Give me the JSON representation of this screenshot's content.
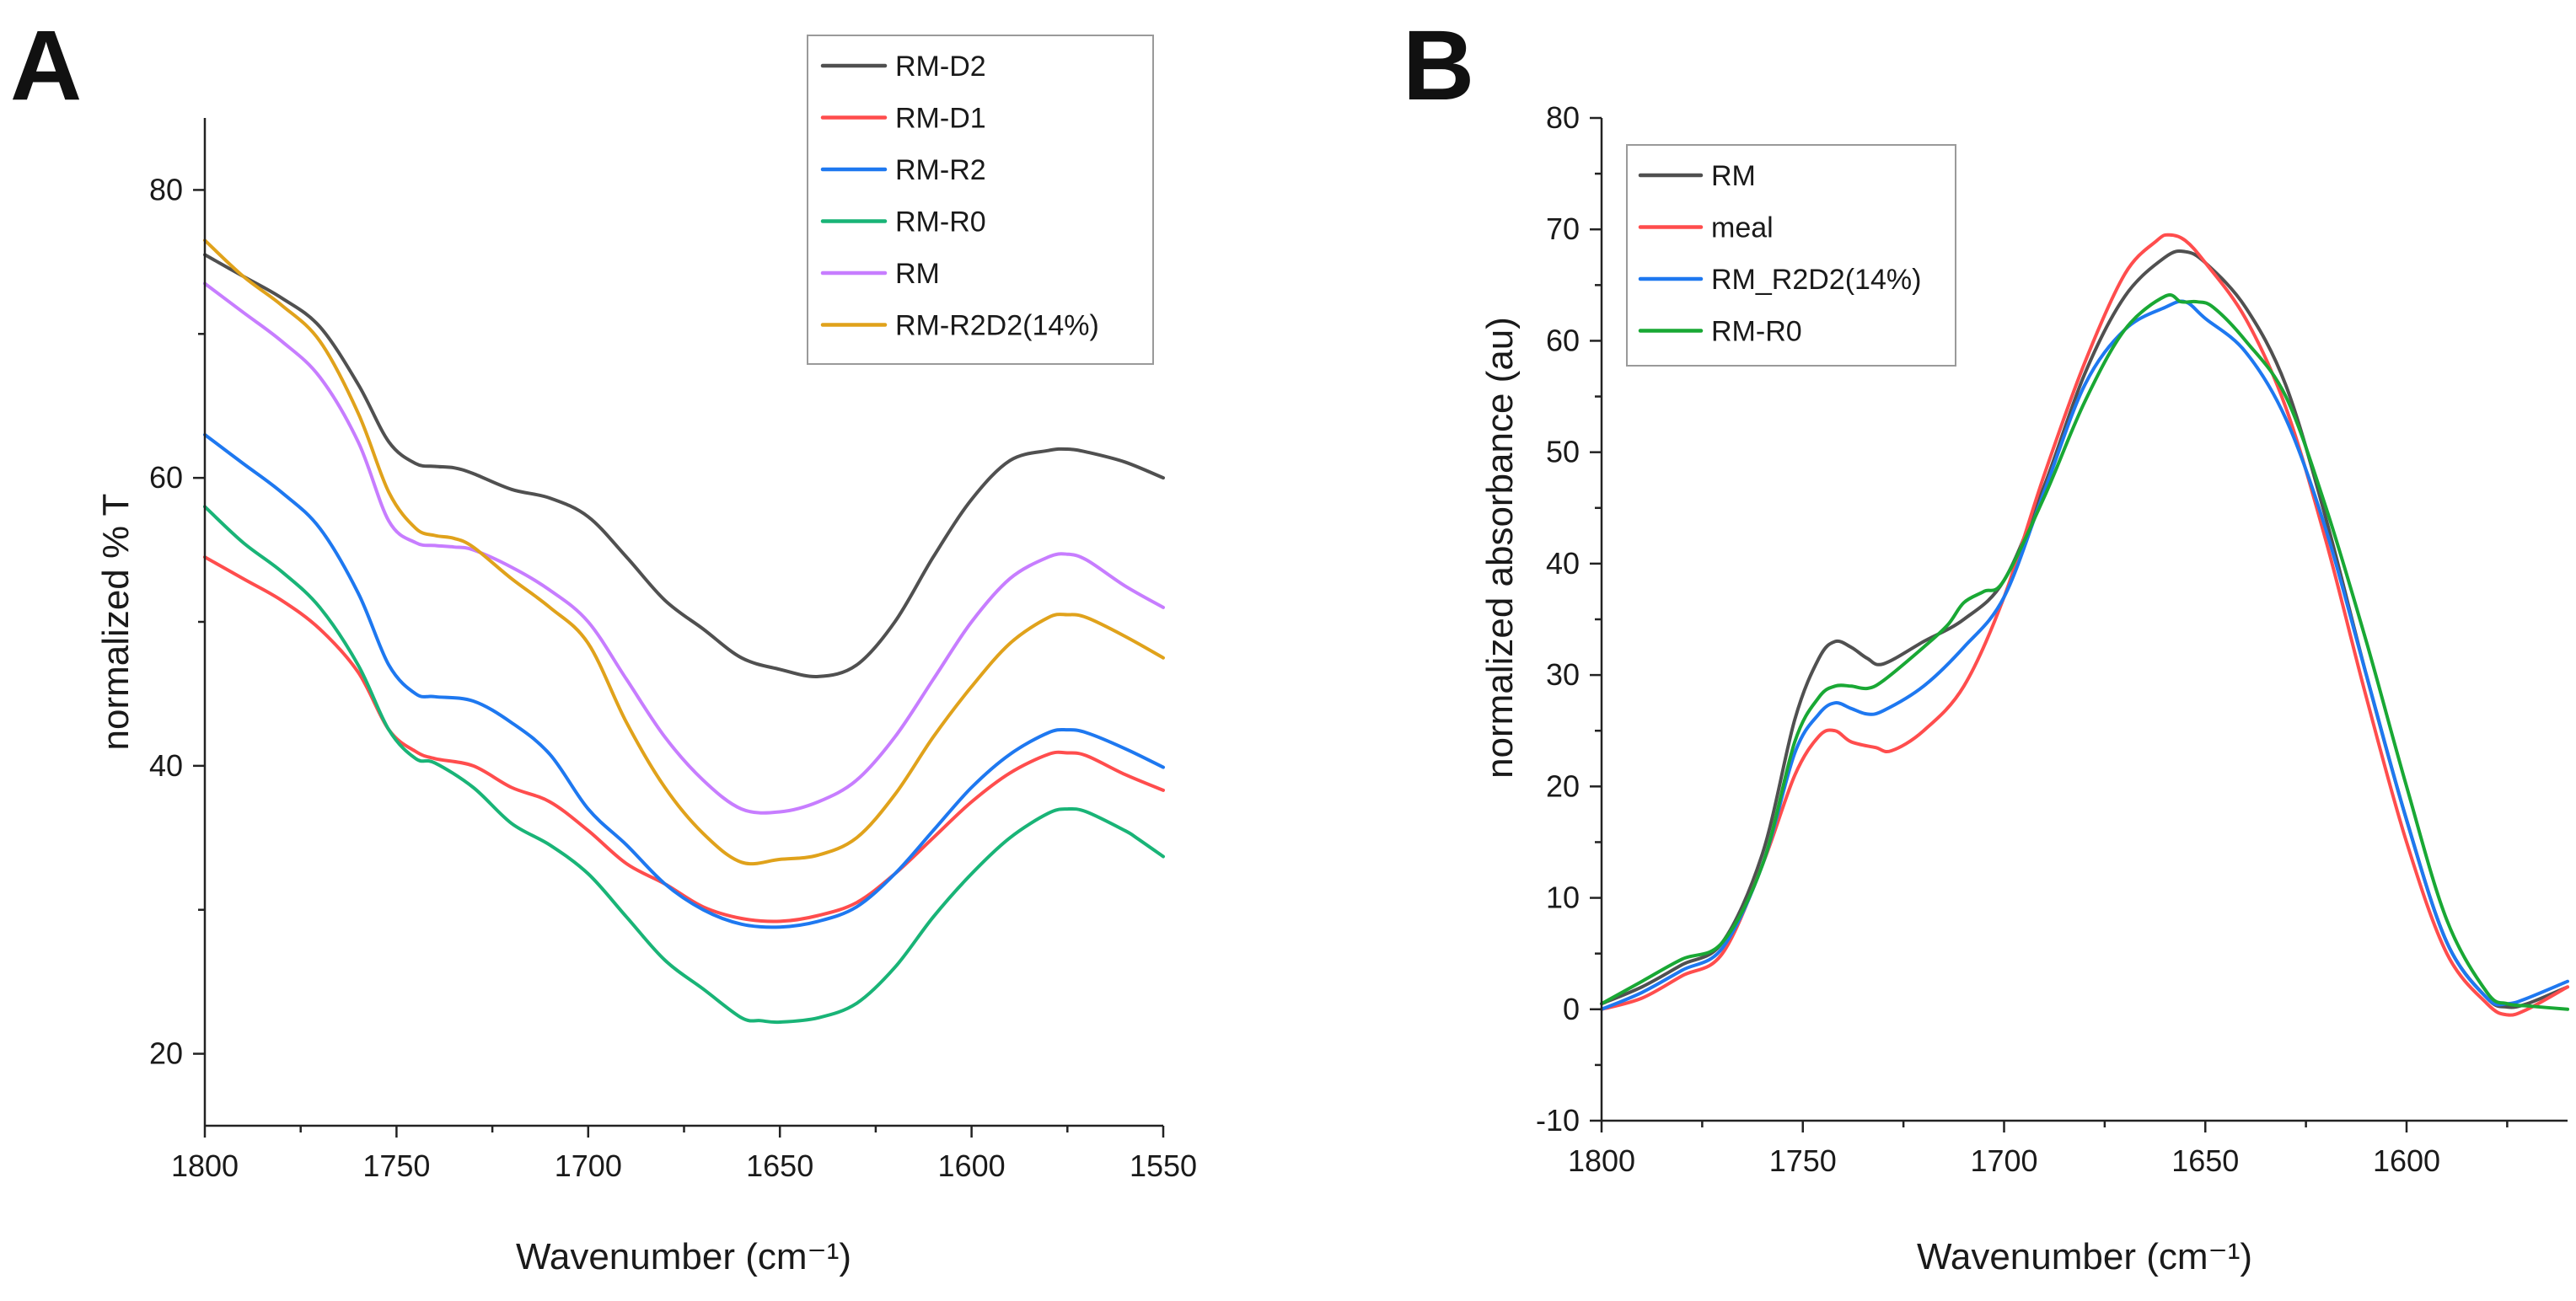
{
  "chart_data": [
    {
      "panel": "A",
      "type": "line",
      "title": "",
      "xlabel": "Wavenumber (cm⁻¹)",
      "ylabel": "normalized % T",
      "xlim": [
        1800,
        1550
      ],
      "ylim": [
        15,
        85
      ],
      "xticks": [
        1800,
        1750,
        1700,
        1650,
        1600,
        1550
      ],
      "yticks": [
        20,
        40,
        60,
        80
      ],
      "legend_position": "top-right",
      "series": [
        {
          "name": "RM-D2",
          "color": "#505050",
          "x": [
            1800,
            1790,
            1780,
            1770,
            1760,
            1752,
            1745,
            1740,
            1735,
            1730,
            1720,
            1710,
            1700,
            1690,
            1680,
            1670,
            1660,
            1650,
            1640,
            1630,
            1620,
            1610,
            1600,
            1590,
            1580,
            1575,
            1570,
            1560,
            1550
          ],
          "y": [
            75.5,
            74.0,
            72.5,
            70.5,
            66.5,
            62.5,
            61.0,
            60.8,
            60.7,
            60.3,
            59.2,
            58.6,
            57.3,
            54.5,
            51.5,
            49.5,
            47.5,
            46.7,
            46.2,
            47.0,
            50.0,
            54.5,
            58.5,
            61.2,
            61.9,
            62.0,
            61.8,
            61.1,
            60.0
          ]
        },
        {
          "name": "RM-D1",
          "color": "#ff4d4d",
          "x": [
            1800,
            1790,
            1780,
            1770,
            1760,
            1752,
            1745,
            1740,
            1730,
            1720,
            1710,
            1700,
            1690,
            1680,
            1670,
            1660,
            1650,
            1640,
            1630,
            1620,
            1610,
            1600,
            1590,
            1580,
            1575,
            1570,
            1560,
            1550
          ],
          "y": [
            54.5,
            53.0,
            51.5,
            49.5,
            46.5,
            42.5,
            41.0,
            40.5,
            40.0,
            38.5,
            37.5,
            35.5,
            33.2,
            31.8,
            30.2,
            29.4,
            29.2,
            29.6,
            30.5,
            32.5,
            35.0,
            37.5,
            39.5,
            40.8,
            40.9,
            40.7,
            39.4,
            38.3
          ]
        },
        {
          "name": "RM-R2",
          "color": "#1e78f0",
          "x": [
            1800,
            1790,
            1780,
            1770,
            1760,
            1752,
            1745,
            1740,
            1730,
            1720,
            1710,
            1700,
            1690,
            1680,
            1670,
            1660,
            1650,
            1640,
            1630,
            1620,
            1610,
            1600,
            1590,
            1580,
            1575,
            1570,
            1560,
            1550
          ],
          "y": [
            63.0,
            61.0,
            59.0,
            56.5,
            52.0,
            47.0,
            45.0,
            44.8,
            44.5,
            43.0,
            40.8,
            37.0,
            34.5,
            31.8,
            30.0,
            29.0,
            28.8,
            29.2,
            30.2,
            32.5,
            35.5,
            38.5,
            40.8,
            42.3,
            42.5,
            42.3,
            41.2,
            39.9
          ]
        },
        {
          "name": "RM-R0",
          "color": "#19b477",
          "x": [
            1800,
            1790,
            1780,
            1770,
            1760,
            1752,
            1745,
            1740,
            1730,
            1720,
            1710,
            1700,
            1690,
            1680,
            1670,
            1660,
            1655,
            1650,
            1640,
            1630,
            1620,
            1610,
            1600,
            1590,
            1580,
            1575,
            1570,
            1560,
            1557,
            1550
          ],
          "y": [
            58.0,
            55.5,
            53.5,
            51.0,
            47.0,
            42.5,
            40.5,
            40.2,
            38.5,
            36.0,
            34.5,
            32.5,
            29.5,
            26.5,
            24.5,
            22.5,
            22.3,
            22.2,
            22.5,
            23.5,
            26.0,
            29.5,
            32.5,
            35.0,
            36.7,
            37.0,
            36.8,
            35.5,
            35.0,
            33.7
          ]
        },
        {
          "name": "RM",
          "color": "#c77dff",
          "x": [
            1800,
            1790,
            1780,
            1770,
            1760,
            1752,
            1745,
            1740,
            1735,
            1730,
            1720,
            1710,
            1700,
            1690,
            1680,
            1670,
            1660,
            1650,
            1640,
            1630,
            1620,
            1610,
            1600,
            1590,
            1580,
            1575,
            1570,
            1560,
            1550
          ],
          "y": [
            73.5,
            71.5,
            69.5,
            67.0,
            62.5,
            57.0,
            55.5,
            55.3,
            55.2,
            55.0,
            53.8,
            52.2,
            50.0,
            46.0,
            42.0,
            39.0,
            37.0,
            36.8,
            37.5,
            39.0,
            42.0,
            46.0,
            50.0,
            53.0,
            54.5,
            54.7,
            54.3,
            52.5,
            51.0
          ]
        },
        {
          "name": "RM-R2D2(14%)",
          "color": "#e0a21b",
          "x": [
            1800,
            1790,
            1780,
            1770,
            1760,
            1752,
            1745,
            1740,
            1735,
            1730,
            1720,
            1710,
            1700,
            1690,
            1680,
            1670,
            1660,
            1650,
            1640,
            1630,
            1620,
            1610,
            1600,
            1590,
            1580,
            1575,
            1570,
            1560,
            1550
          ],
          "y": [
            76.5,
            74.0,
            72.0,
            69.5,
            64.5,
            59.0,
            56.5,
            56.0,
            55.8,
            55.2,
            53.0,
            51.0,
            48.5,
            43.0,
            38.5,
            35.3,
            33.3,
            33.5,
            33.8,
            35.0,
            38.0,
            42.0,
            45.5,
            48.5,
            50.3,
            50.5,
            50.3,
            49.0,
            47.5
          ]
        }
      ]
    },
    {
      "panel": "B",
      "type": "line",
      "title": "",
      "xlabel": "Wavenumber (cm⁻¹)",
      "ylabel": "normalized absorbance (au)",
      "xlim": [
        1800,
        1560
      ],
      "ylim": [
        -10,
        80
      ],
      "xticks": [
        1800,
        1750,
        1700,
        1650,
        1600
      ],
      "yticks": [
        -10,
        0,
        10,
        20,
        30,
        40,
        50,
        60,
        70,
        80
      ],
      "legend_position": "top-left",
      "series": [
        {
          "name": "RM",
          "color": "#505050",
          "x": [
            1800,
            1790,
            1780,
            1770,
            1760,
            1752,
            1746,
            1742,
            1738,
            1734,
            1730,
            1720,
            1710,
            1700,
            1690,
            1680,
            1670,
            1660,
            1655,
            1650,
            1640,
            1630,
            1620,
            1610,
            1600,
            1590,
            1580,
            1575,
            1570,
            1560
          ],
          "y": [
            0.5,
            2.0,
            4.0,
            6.0,
            14.0,
            26.0,
            31.5,
            33.0,
            32.5,
            31.5,
            31.0,
            33.0,
            35.0,
            38.5,
            47.0,
            57.0,
            64.0,
            67.5,
            68.0,
            67.0,
            63.0,
            56.0,
            44.0,
            30.0,
            17.0,
            6.0,
            1.0,
            0.2,
            0.5,
            2.0
          ]
        },
        {
          "name": "meal",
          "color": "#ff4d4d",
          "x": [
            1800,
            1790,
            1780,
            1770,
            1760,
            1752,
            1746,
            1742,
            1738,
            1732,
            1728,
            1720,
            1710,
            1700,
            1690,
            1680,
            1670,
            1662,
            1659,
            1655,
            1650,
            1640,
            1630,
            1620,
            1610,
            1600,
            1590,
            1580,
            1575,
            1570,
            1560
          ],
          "y": [
            0.0,
            1.0,
            3.0,
            5.0,
            13.0,
            21.0,
            24.5,
            25.0,
            24.0,
            23.5,
            23.2,
            25.0,
            29.0,
            37.0,
            48.0,
            58.0,
            66.0,
            69.0,
            69.5,
            69.0,
            67.0,
            62.0,
            54.0,
            42.0,
            28.0,
            15.0,
            5.0,
            0.5,
            -0.5,
            0.0,
            2.0
          ]
        },
        {
          "name": "RM_R2D2(14%)",
          "color": "#1e78f0",
          "x": [
            1800,
            1790,
            1780,
            1770,
            1760,
            1752,
            1746,
            1742,
            1738,
            1734,
            1730,
            1720,
            1710,
            1700,
            1690,
            1680,
            1670,
            1660,
            1655,
            1650,
            1640,
            1630,
            1620,
            1610,
            1600,
            1590,
            1580,
            1575,
            1570,
            1560
          ],
          "y": [
            0.0,
            1.5,
            3.5,
            5.5,
            13.0,
            23.0,
            26.5,
            27.5,
            27.0,
            26.5,
            26.8,
            29.0,
            32.5,
            37.0,
            46.5,
            56.0,
            61.0,
            63.0,
            63.5,
            62.0,
            59.0,
            53.0,
            43.0,
            30.0,
            17.0,
            6.0,
            1.0,
            0.5,
            1.0,
            2.5
          ]
        },
        {
          "name": "RM-R0",
          "color": "#19a834",
          "x": [
            1800,
            1790,
            1780,
            1770,
            1760,
            1752,
            1746,
            1742,
            1738,
            1734,
            1730,
            1720,
            1714,
            1710,
            1705,
            1700,
            1690,
            1680,
            1670,
            1660,
            1656,
            1652,
            1648,
            1640,
            1630,
            1620,
            1610,
            1600,
            1590,
            1580,
            1575,
            1570,
            1560
          ],
          "y": [
            0.5,
            2.5,
            4.5,
            6.0,
            13.0,
            24.0,
            28.0,
            29.0,
            29.0,
            28.8,
            29.5,
            32.5,
            34.5,
            36.5,
            37.5,
            38.5,
            46.0,
            54.5,
            61.0,
            64.0,
            63.5,
            63.5,
            63.0,
            60.0,
            55.0,
            45.0,
            33.0,
            20.0,
            8.0,
            1.5,
            0.5,
            0.3,
            0.0
          ]
        }
      ]
    }
  ],
  "panels": {
    "A": {
      "letter": "A",
      "xlabel": "Wavenumber (cm⁻¹)",
      "ylabel": "normalized % T",
      "legend": [
        "RM-D2",
        "RM-D1",
        "RM-R2",
        "RM-R0",
        "RM",
        "RM-R2D2(14%)"
      ]
    },
    "B": {
      "letter": "B",
      "xlabel": "Wavenumber (cm⁻¹)",
      "ylabel": "normalized absorbance (au)",
      "legend": [
        "RM",
        "meal",
        "RM_R2D2(14%)",
        "RM-R0"
      ]
    }
  }
}
